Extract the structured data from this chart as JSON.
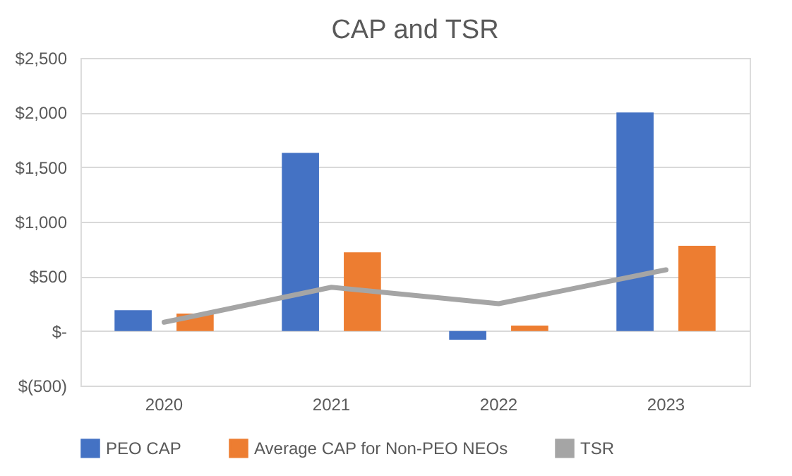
{
  "chart_data": {
    "type": "bar",
    "title": "CAP and TSR",
    "categories": [
      "2020",
      "2021",
      "2022",
      "2023"
    ],
    "series": [
      {
        "name": "PEO CAP",
        "color": "#4472c4",
        "values": [
          190,
          1630,
          -80,
          2000
        ]
      },
      {
        "name": "Average CAP for Non-PEO NEOs",
        "color": "#ed7d31",
        "values": [
          160,
          720,
          50,
          780
        ]
      },
      {
        "name": "TSR",
        "type": "line",
        "color": "#a5a5a5",
        "values": [
          80,
          400,
          250,
          560
        ]
      }
    ],
    "ylim": [
      -500,
      2500
    ],
    "yticks": [
      {
        "value": -500,
        "label": "$(500)"
      },
      {
        "value": 0,
        "label": "$-"
      },
      {
        "value": 500,
        "label": "$500"
      },
      {
        "value": 1000,
        "label": "$1,000"
      },
      {
        "value": 1500,
        "label": "$1,500"
      },
      {
        "value": 2000,
        "label": "$2,000"
      },
      {
        "value": 2500,
        "label": "$2,500"
      }
    ],
    "grid": "y",
    "legend": "bottom",
    "marker": "none"
  }
}
